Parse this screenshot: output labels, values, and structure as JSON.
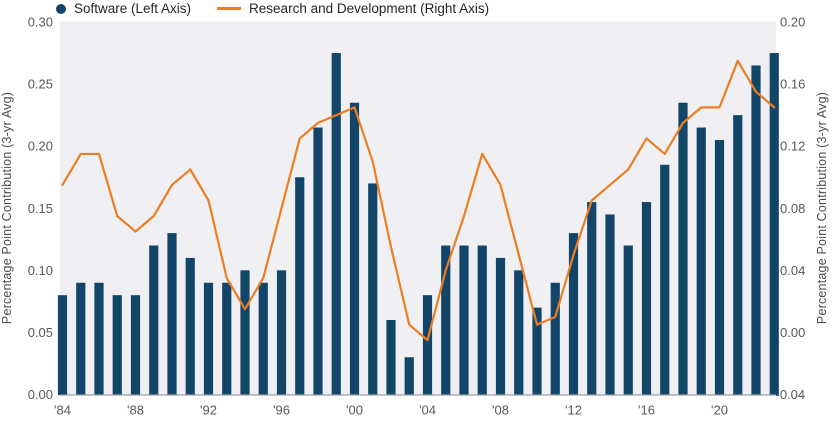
{
  "colors": {
    "bar": "#134569",
    "line": "#EC7D21",
    "plot_bg": "#F0F0F4",
    "baseline": "#9B9FA4",
    "tick_text": "#595959",
    "axis_title_text": "#4D4D4D",
    "legend_text": "#262626"
  },
  "chart_data": {
    "type": "bar",
    "title": "",
    "left_ylabel": "Percentage Point Contribution (3-yr Avg)",
    "right_ylabel": "Percentage Point Contribution (3-yr Avg)",
    "left_ylim": [
      0.0,
      0.3
    ],
    "right_ylim": [
      -0.04,
      0.2
    ],
    "left_tick_values": [
      0.3,
      0.25,
      0.2,
      0.15,
      0.1,
      0.05,
      0.0
    ],
    "left_tick_labels": [
      "0.30",
      "0.25",
      "0.20",
      "0.15",
      "0.10",
      "0.05",
      "0.00"
    ],
    "right_tick_values": [
      0.2,
      0.16,
      0.12,
      0.08,
      0.04,
      0.0,
      -0.04
    ],
    "right_tick_labels": [
      "0.20",
      "0.16",
      "0.12",
      "0.08",
      "0.04",
      "0.00",
      "-0.04"
    ],
    "x_tick_years": [
      1984,
      1988,
      1992,
      1996,
      2000,
      2004,
      2008,
      2012,
      2016,
      2020
    ],
    "x_tick_labels": [
      "'84",
      "'88",
      "'92",
      "'96",
      "'00",
      "'04",
      "'08",
      "'12",
      "'16",
      "'20"
    ],
    "grid": "off",
    "legend_position": "top-left",
    "series": [
      {
        "name": "Software (Left Axis)",
        "type": "bar",
        "axis": "left",
        "years": [
          1984,
          1985,
          1986,
          1987,
          1988,
          1989,
          1990,
          1991,
          1992,
          1993,
          1994,
          1995,
          1996,
          1997,
          1998,
          1999,
          2000,
          2001,
          2002,
          2003,
          2004,
          2005,
          2006,
          2007,
          2008,
          2009,
          2010,
          2011,
          2012,
          2013,
          2014,
          2015,
          2016,
          2017,
          2018,
          2019,
          2020,
          2021,
          2022,
          2023
        ],
        "values": [
          0.08,
          0.09,
          0.09,
          0.08,
          0.08,
          0.12,
          0.13,
          0.11,
          0.09,
          0.09,
          0.1,
          0.09,
          0.1,
          0.175,
          0.215,
          0.275,
          0.235,
          0.17,
          0.06,
          0.03,
          0.08,
          0.12,
          0.12,
          0.12,
          0.11,
          0.1,
          0.07,
          0.09,
          0.13,
          0.155,
          0.145,
          0.12,
          0.155,
          0.185,
          0.235,
          0.215,
          0.205,
          0.225,
          0.265,
          0.275
        ]
      },
      {
        "name": "Research and Development (Right Axis)",
        "type": "line",
        "axis": "right",
        "years": [
          1984,
          1985,
          1986,
          1987,
          1988,
          1989,
          1990,
          1991,
          1992,
          1993,
          1994,
          1995,
          1996,
          1997,
          1998,
          1999,
          2000,
          2001,
          2002,
          2003,
          2004,
          2005,
          2006,
          2007,
          2008,
          2009,
          2010,
          2011,
          2012,
          2013,
          2014,
          2015,
          2016,
          2017,
          2018,
          2019,
          2020,
          2021,
          2022,
          2023
        ],
        "values": [
          0.095,
          0.115,
          0.115,
          0.075,
          0.065,
          0.075,
          0.095,
          0.105,
          0.085,
          0.035,
          0.015,
          0.035,
          0.08,
          0.125,
          0.135,
          0.14,
          0.145,
          0.11,
          0.055,
          0.005,
          -0.005,
          0.04,
          0.075,
          0.115,
          0.095,
          0.05,
          0.005,
          0.01,
          0.05,
          0.085,
          0.095,
          0.105,
          0.125,
          0.115,
          0.135,
          0.145,
          0.145,
          0.175,
          0.155,
          0.145
        ]
      }
    ]
  }
}
